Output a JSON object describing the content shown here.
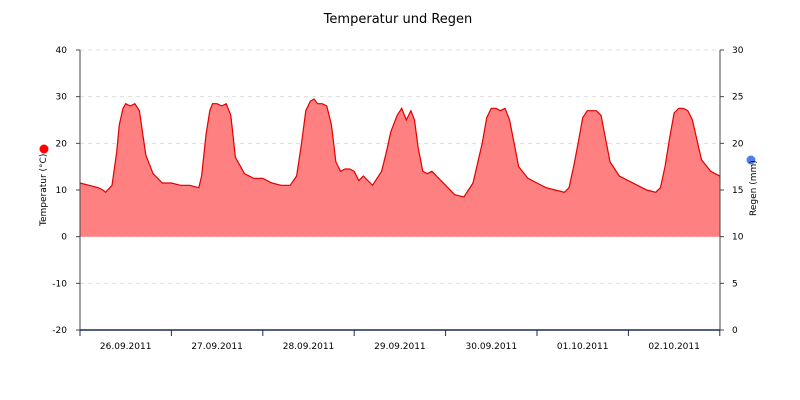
{
  "chart_data": {
    "type": "area",
    "title": "Temperatur und Regen",
    "y_left": {
      "label": "Temperatur (°C)",
      "range": [
        -20,
        40
      ],
      "ticks": [
        "-20",
        "-10",
        "0",
        "10",
        "20",
        "30",
        "40"
      ]
    },
    "y_right": {
      "label": "Regen (mm)",
      "range": [
        0,
        30
      ],
      "ticks": [
        "0",
        "5",
        "10",
        "15",
        "20",
        "25",
        "30"
      ]
    },
    "x_labels": [
      "26.09.2011",
      "27.09.2011",
      "28.09.2011",
      "29.09.2011",
      "30.09.2011",
      "01.10.2011",
      "02.10.2011"
    ],
    "grid": "horizontal dashed",
    "colors": {
      "temperature": "#ff8080",
      "temperature_line": "#e00000",
      "temperature_marker": "#ff0000",
      "rain_marker": "#4f7fe6",
      "axis": "#1a2a5a"
    },
    "series": [
      {
        "key": "temperature",
        "x_day": [
          0.0,
          0.1,
          0.2,
          0.25,
          0.28,
          0.35,
          0.4,
          0.43,
          0.47,
          0.5,
          0.55,
          0.6,
          0.65,
          0.72,
          0.8,
          0.9,
          1.0,
          1.1,
          1.2,
          1.3,
          1.33,
          1.38,
          1.42,
          1.45,
          1.47,
          1.5,
          1.55,
          1.6,
          1.65,
          1.7,
          1.8,
          1.9,
          2.0,
          2.1,
          2.2,
          2.3,
          2.37,
          2.42,
          2.47,
          2.52,
          2.56,
          2.6,
          2.65,
          2.7,
          2.75,
          2.8,
          2.85,
          2.9,
          2.95,
          3.0,
          3.05,
          3.1,
          3.2,
          3.3,
          3.35,
          3.4,
          3.47,
          3.52,
          3.57,
          3.62,
          3.66,
          3.7,
          3.75,
          3.8,
          3.85,
          3.9,
          3.95,
          4.0,
          4.1,
          4.2,
          4.3,
          4.4,
          4.45,
          4.5,
          4.55,
          4.6,
          4.65,
          4.7,
          4.8,
          4.9,
          5.0,
          5.1,
          5.2,
          5.3,
          5.35,
          5.4,
          5.45,
          5.5,
          5.55,
          5.6,
          5.65,
          5.7,
          5.8,
          5.9,
          6.0,
          6.1,
          6.2,
          6.3,
          6.35,
          6.4,
          6.45,
          6.5,
          6.55,
          6.6,
          6.65,
          6.7,
          6.8,
          6.9,
          6.95,
          7.0,
          7.03
        ],
        "y": [
          11.5,
          11.0,
          10.5,
          10.0,
          9.5,
          11.0,
          18.0,
          24.0,
          27.5,
          28.5,
          28.0,
          28.5,
          27.0,
          17.5,
          13.5,
          11.5,
          11.5,
          11.0,
          11.0,
          10.5,
          13.0,
          22.0,
          27.0,
          28.5,
          28.5,
          28.5,
          28.0,
          28.5,
          26.0,
          17.0,
          13.5,
          12.5,
          12.5,
          11.5,
          11.0,
          11.0,
          13.0,
          19.5,
          27.0,
          29.0,
          29.5,
          28.5,
          28.5,
          28.0,
          24.0,
          16.0,
          14.0,
          14.5,
          14.5,
          14.0,
          12.0,
          13.0,
          11.0,
          14.0,
          18.0,
          22.5,
          26.0,
          27.5,
          25.0,
          27.0,
          25.0,
          19.0,
          14.0,
          13.5,
          14.0,
          13.0,
          12.0,
          11.0,
          9.0,
          8.5,
          11.5,
          20.0,
          25.5,
          27.5,
          27.5,
          27.0,
          27.5,
          25.0,
          15.0,
          12.5,
          11.5,
          10.5,
          10.0,
          9.5,
          10.5,
          15.0,
          20.0,
          25.5,
          27.0,
          27.0,
          27.0,
          26.0,
          16.0,
          13.0,
          12.0,
          11.0,
          10.0,
          9.5,
          10.5,
          15.0,
          21.0,
          26.5,
          27.5,
          27.5,
          27.0,
          25.0,
          16.5,
          14.0,
          13.5,
          13.0,
          12.5
        ]
      }
    ]
  }
}
